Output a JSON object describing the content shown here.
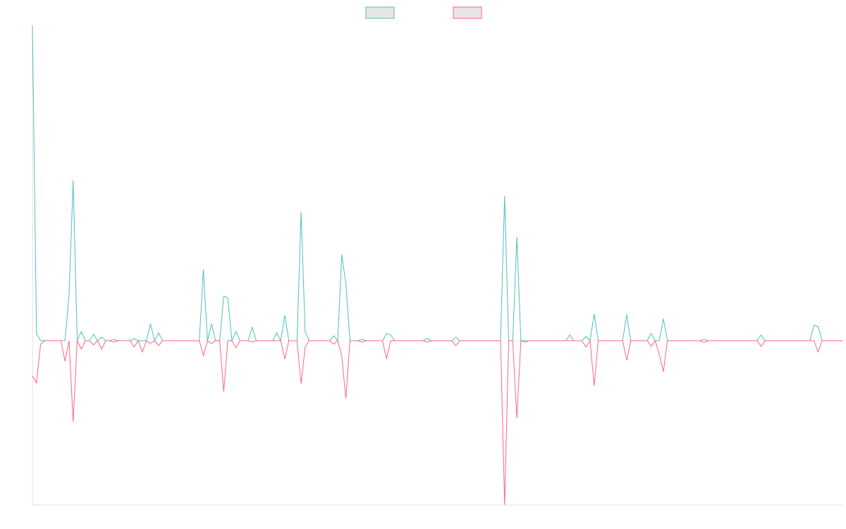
{
  "chart_data": {
    "type": "line",
    "legend": "top",
    "ylim": [
      -233,
      447
    ],
    "series": [
      {
        "color": "#4bc0c0",
        "values": [
          447,
          10,
          0,
          0,
          0,
          0,
          0,
          0,
          0,
          65,
          227,
          0,
          13,
          0,
          0,
          9,
          0,
          5,
          0,
          0,
          2,
          0,
          0,
          0,
          0,
          3,
          0,
          0,
          0,
          24,
          0,
          11,
          0,
          0,
          0,
          0,
          0,
          0,
          0,
          0,
          0,
          0,
          101,
          0,
          24,
          0,
          0,
          63,
          61,
          0,
          13,
          0,
          0,
          0,
          19,
          0,
          0,
          0,
          0,
          0,
          11,
          0,
          36,
          0,
          0,
          0,
          182,
          13,
          0,
          0,
          0,
          0,
          0,
          0,
          7,
          0,
          122,
          81,
          0,
          0,
          0,
          2,
          0,
          0,
          0,
          0,
          0,
          10,
          8,
          0,
          0,
          0,
          0,
          0,
          0,
          0,
          0,
          3,
          0,
          0,
          0,
          0,
          0,
          0,
          5,
          0,
          0,
          0,
          0,
          0,
          0,
          0,
          0,
          0,
          0,
          0,
          205,
          0,
          0,
          147,
          0,
          0,
          0,
          0,
          0,
          0,
          0,
          0,
          0,
          0,
          0,
          0,
          8,
          0,
          0,
          0,
          6,
          0,
          38,
          0,
          0,
          0,
          0,
          0,
          0,
          0,
          37,
          0,
          0,
          0,
          0,
          0,
          10,
          0,
          0,
          31,
          0,
          0,
          0,
          0,
          0,
          0,
          0,
          0,
          0,
          2,
          0,
          0,
          0,
          0,
          0,
          0,
          0,
          0,
          0,
          0,
          0,
          0,
          0,
          8,
          0,
          0,
          0,
          0,
          0,
          0,
          0,
          0,
          0,
          0,
          0,
          0,
          22,
          20,
          0,
          0,
          0,
          0,
          0,
          0
        ]
      },
      {
        "color": "#ff6384",
        "values": [
          -50,
          -60,
          -5,
          0,
          0,
          0,
          0,
          0,
          -29,
          0,
          -115,
          0,
          -12,
          0,
          0,
          -6,
          0,
          -12,
          0,
          0,
          -2,
          0,
          0,
          0,
          0,
          -9,
          0,
          -16,
          0,
          -4,
          0,
          -7,
          0,
          0,
          0,
          0,
          0,
          0,
          0,
          0,
          0,
          0,
          -21,
          0,
          -4,
          0,
          0,
          -72,
          0,
          0,
          -10,
          0,
          0,
          0,
          -2,
          0,
          0,
          0,
          0,
          0,
          0,
          0,
          -26,
          0,
          0,
          0,
          -61,
          -9,
          0,
          0,
          0,
          0,
          0,
          0,
          -5,
          0,
          -22,
          -82,
          0,
          0,
          0,
          -2,
          0,
          0,
          0,
          0,
          0,
          -26,
          0,
          0,
          0,
          0,
          0,
          0,
          0,
          0,
          0,
          -2,
          0,
          0,
          0,
          0,
          0,
          0,
          -7,
          0,
          0,
          0,
          0,
          0,
          0,
          0,
          0,
          0,
          0,
          0,
          -233,
          0,
          0,
          -110,
          0,
          -2,
          0,
          0,
          0,
          0,
          0,
          0,
          0,
          0,
          0,
          0,
          0,
          0,
          0,
          0,
          -9,
          0,
          -64,
          0,
          0,
          0,
          0,
          0,
          0,
          0,
          -28,
          0,
          0,
          0,
          0,
          0,
          -8,
          0,
          -20,
          -44,
          0,
          0,
          0,
          0,
          0,
          0,
          0,
          0,
          0,
          -2,
          0,
          0,
          0,
          0,
          0,
          0,
          0,
          0,
          0,
          0,
          0,
          0,
          0,
          -8,
          0,
          0,
          0,
          0,
          0,
          0,
          0,
          0,
          0,
          0,
          0,
          0,
          0,
          -16,
          0,
          0,
          0,
          0,
          0,
          0
        ]
      }
    ]
  }
}
